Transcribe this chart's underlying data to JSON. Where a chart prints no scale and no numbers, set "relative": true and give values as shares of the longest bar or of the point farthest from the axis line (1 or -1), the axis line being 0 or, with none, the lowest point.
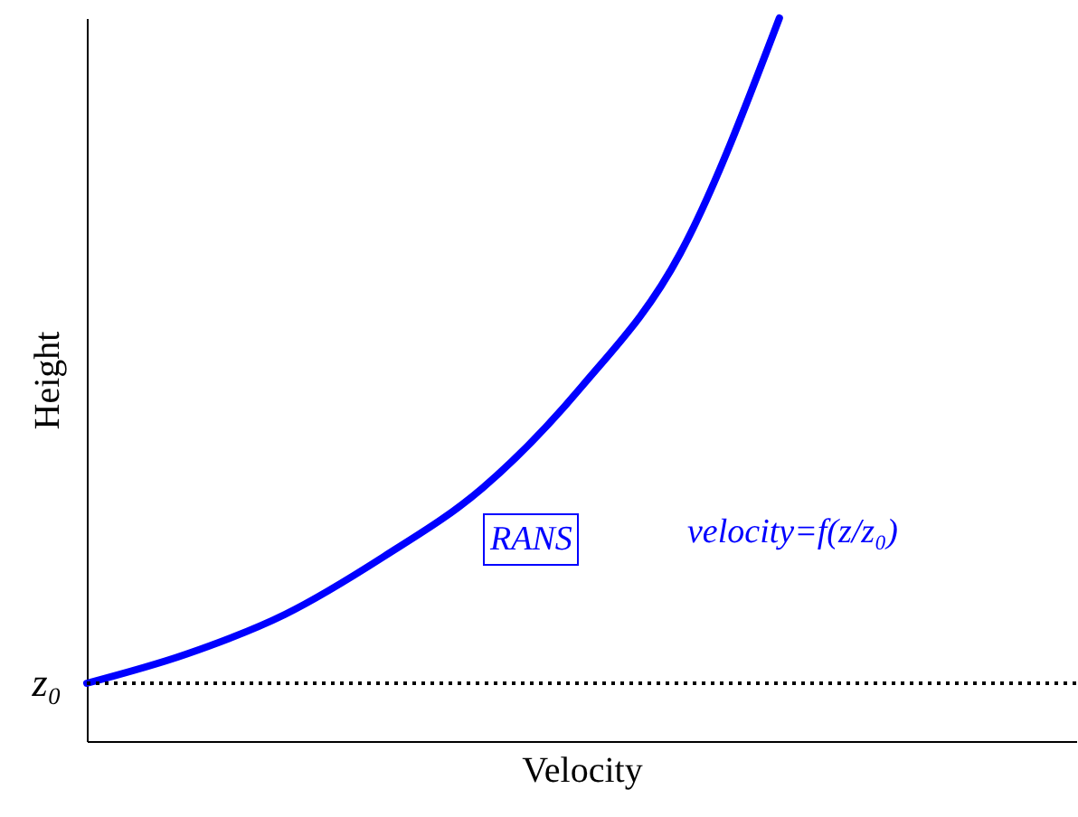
{
  "chart_data": {
    "type": "line",
    "relative": true,
    "xlabel": "Velocity",
    "ylabel": "Height",
    "categories": [
      null,
      null,
      null,
      null,
      null,
      null,
      null,
      null,
      null,
      null,
      null
    ],
    "series": [
      {
        "color": "#0000ff",
        "values": [
          0.08,
          0.12,
          0.175,
          0.255,
          0.35,
          0.49,
          0.675,
          1.0,
          null,
          null,
          null
        ]
      }
    ],
    "ref_lines": [
      {
        "axis": "y",
        "value": 0.08,
        "label": "z₀",
        "color": "#000000",
        "line_style": "dotted"
      }
    ],
    "annotations": [
      "RANS",
      "velocity=f(z/z₀)"
    ],
    "grid": false,
    "marker": "none",
    "line_style": "solid"
  }
}
